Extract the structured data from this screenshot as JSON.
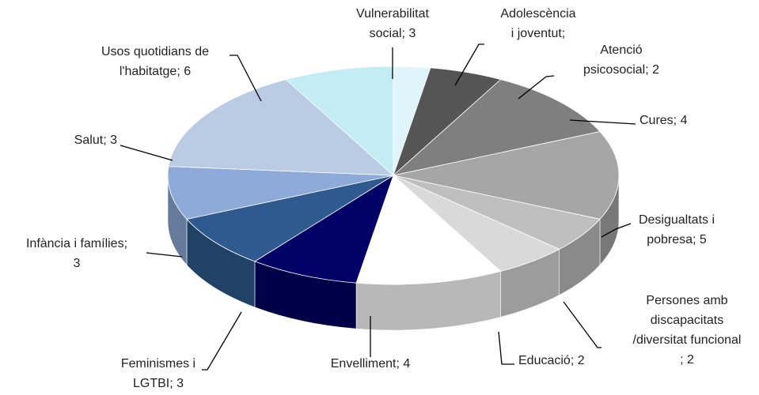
{
  "chart_data": {
    "type": "pie3d",
    "values": [
      1,
      2,
      4,
      5,
      2,
      2,
      4,
      3,
      3,
      3,
      6,
      3
    ],
    "value_labels": [
      "Adolescència i joventut; 1",
      "Atenció psicosocial; 2",
      "Cures; 4",
      "Desigualtats i pobresa; 5",
      "Persones amb discapacitats /diversitat funcional ; 2",
      "Educació; 2",
      "Envelliment; 4",
      "Feminismes i LGTBI; 3",
      "Infància i famílies; 3",
      "Salut; 3",
      "Usos quotidians de l'habitatge; 6",
      "Vulnerabilitat social; 3"
    ],
    "colors": [
      "#dff5fa",
      "#555555",
      "#7f7f7f",
      "#a6a6a6",
      "#bfbfbf",
      "#d9d9d9",
      "#ffffff",
      "#000066",
      "#2e5a8f",
      "#8eaad8",
      "#b9cce4",
      "#c4ecf4"
    ]
  }
}
